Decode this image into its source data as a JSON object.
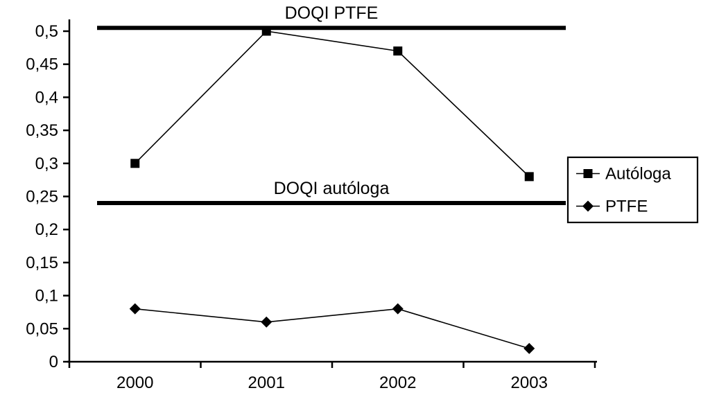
{
  "chart_data": {
    "type": "line",
    "title": "",
    "categories": [
      "2000",
      "2001",
      "2002",
      "2003"
    ],
    "series": [
      {
        "name": "Autóloga",
        "marker": "square",
        "values": [
          0.3,
          0.5,
          0.47,
          0.28
        ]
      },
      {
        "name": "PTFE",
        "marker": "diamond",
        "values": [
          0.08,
          0.06,
          0.08,
          0.02
        ]
      }
    ],
    "reference_lines": [
      {
        "label": "DOQI PTFE",
        "value": 0.505
      },
      {
        "label": "DOQI autóloga",
        "value": 0.24
      }
    ],
    "xlabel": "",
    "ylabel": "",
    "ylim": [
      0,
      0.5
    ],
    "ytick_step": 0.05,
    "ytick_labels": [
      "0",
      "0,05",
      "0,1",
      "0,15",
      "0,2",
      "0,25",
      "0,3",
      "0,35",
      "0,4",
      "0,45",
      "0,5"
    ],
    "grid": false,
    "legend": {
      "position": "right"
    },
    "colors": {
      "foreground": "#000000",
      "background": "#ffffff"
    }
  }
}
